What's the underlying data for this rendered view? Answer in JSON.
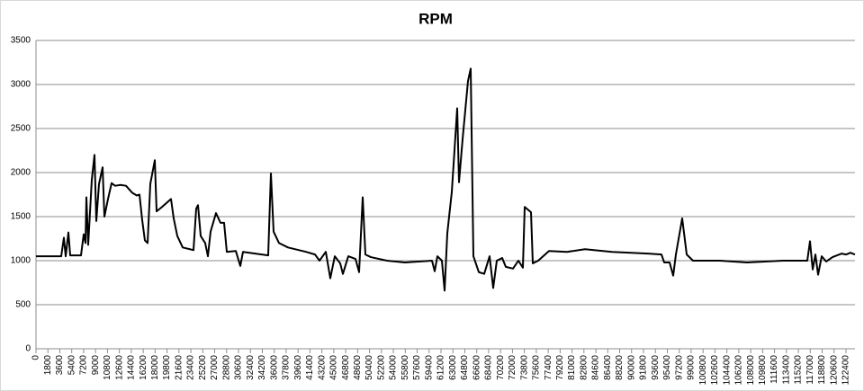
{
  "chart_data": {
    "type": "line",
    "title": "RPM",
    "x": [
      0,
      3808,
      4216,
      4488,
      4896,
      5168,
      6800,
      7208,
      7480,
      7616,
      7888,
      8432,
      8840,
      9112,
      9520,
      10064,
      10336,
      10880,
      11424,
      11968,
      12784,
      13600,
      14552,
      15232,
      15640,
      16048,
      16456,
      16864,
      17272,
      17952,
      18224,
      19040,
      20400,
      20808,
      21352,
      22168,
      23800,
      24208,
      24480,
      24888,
      25568,
      25976,
      26384,
      27200,
      27880,
      28424,
      28832,
      30192,
      30872,
      31280,
      35088,
      35496,
      35904,
      36720,
      38080,
      40800,
      42160,
      42840,
      43792,
      44472,
      45152,
      45968,
      46376,
      47192,
      48280,
      48824,
      49368,
      49776,
      50592,
      53040,
      55760,
      59840,
      60248,
      60656,
      61336,
      61744,
      62152,
      62832,
      63648,
      63920,
      64464,
      65280,
      65688,
      66096,
      66912,
      67728,
      68544,
      69088,
      69632,
      70448,
      70992,
      72080,
      72896,
      73576,
      73848,
      74800,
      75072,
      75888,
      77520,
      80240,
      82960,
      87040,
      92480,
      94520,
      94928,
      95744,
      96288,
      96696,
      97648,
      98328,
      99280,
      103360,
      107440,
      112880,
      116552,
      116960,
      117368,
      117776,
      118184,
      118728,
      119408,
      120360,
      121720,
      122400,
      123080,
      123760
    ],
    "series": [
      {
        "name": "RPM",
        "color": "#000000",
        "values": [
          1050,
          1050,
          1260,
          1050,
          1320,
          1060,
          1060,
          1300,
          1200,
          1720,
          1180,
          1920,
          2200,
          1450,
          1870,
          2060,
          1500,
          1700,
          1880,
          1850,
          1860,
          1850,
          1770,
          1740,
          1750,
          1460,
          1230,
          1200,
          1870,
          2140,
          1560,
          1610,
          1700,
          1480,
          1280,
          1150,
          1120,
          1590,
          1630,
          1280,
          1200,
          1050,
          1330,
          1540,
          1430,
          1430,
          1100,
          1110,
          940,
          1100,
          1060,
          1990,
          1330,
          1200,
          1150,
          1100,
          1070,
          1000,
          1100,
          800,
          1050,
          970,
          850,
          1050,
          1020,
          870,
          1720,
          1070,
          1040,
          1000,
          980,
          1000,
          880,
          1050,
          1000,
          660,
          1310,
          1780,
          2730,
          1890,
          2380,
          3040,
          3180,
          1050,
          870,
          850,
          1050,
          690,
          1000,
          1030,
          930,
          910,
          1000,
          920,
          1610,
          1550,
          970,
          1000,
          1110,
          1100,
          1130,
          1100,
          1080,
          1070,
          980,
          980,
          830,
          1070,
          1480,
          1070,
          1000,
          1000,
          980,
          1000,
          1000,
          1220,
          900,
          1070,
          840,
          1050,
          990,
          1040,
          1080,
          1070,
          1090,
          1070
        ]
      }
    ],
    "xlim": [
      0,
      123760
    ],
    "xticks": [
      0,
      1800,
      3600,
      5400,
      7200,
      9000,
      10800,
      12600,
      14400,
      16200,
      18000,
      19800,
      21600,
      23400,
      25200,
      27000,
      28800,
      30600,
      32400,
      34200,
      36000,
      37800,
      39600,
      41400,
      43200,
      45000,
      46800,
      48600,
      50400,
      52200,
      54000,
      55800,
      57600,
      59400,
      61200,
      63000,
      64800,
      66600,
      68400,
      70200,
      72000,
      73800,
      75600,
      77400,
      79200,
      81000,
      82800,
      84600,
      86400,
      88200,
      90000,
      91800,
      93600,
      95400,
      97200,
      99000,
      100800,
      102600,
      104400,
      106200,
      108000,
      109800,
      111600,
      113400,
      115200,
      117000,
      118800,
      120600,
      122400
    ],
    "ylim": [
      0,
      3500
    ],
    "yticks": [
      0,
      500,
      1000,
      1500,
      2000,
      2500,
      3000,
      3500
    ],
    "grid": true
  }
}
